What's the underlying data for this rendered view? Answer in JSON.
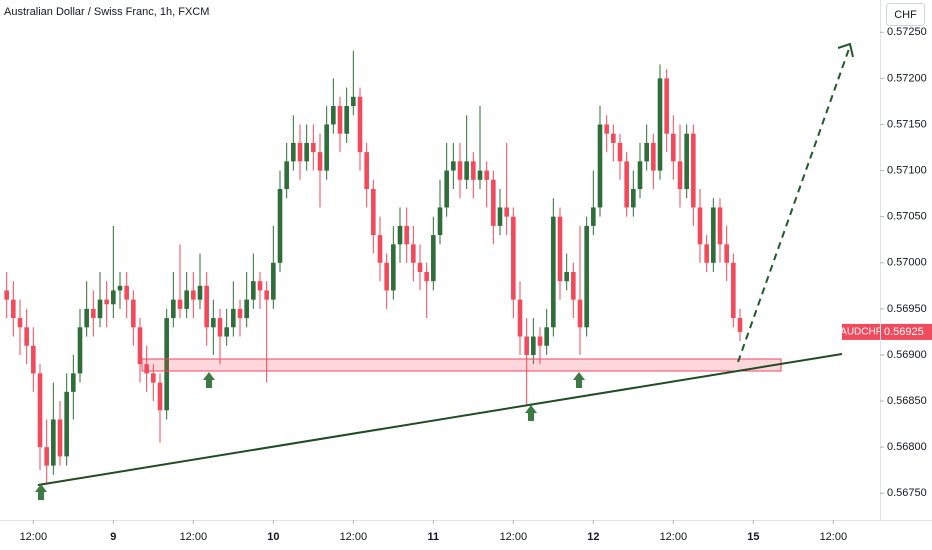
{
  "chart_data": {
    "type": "candlestick",
    "title": "Australian Dollar / Swiss Franc, 1h, FXCM",
    "currency": "CHF",
    "symbol": "AUDCHF",
    "last_price": 0.56925,
    "up_color": "#2f6d3a",
    "down_color": "#f04a5c",
    "x": [
      -4,
      -3,
      -2,
      -1,
      0,
      1,
      2,
      3,
      4,
      5,
      6,
      7,
      8,
      9,
      10,
      11,
      12,
      13,
      14,
      15,
      16,
      17,
      18,
      19,
      20,
      21,
      22,
      23,
      24,
      25,
      26,
      27,
      28,
      29,
      30,
      31,
      32,
      33,
      34,
      35,
      36,
      37,
      38,
      39,
      40,
      41,
      42,
      43,
      44,
      45,
      46,
      47,
      48,
      49,
      50,
      51,
      52,
      53,
      54,
      55,
      56,
      57,
      58,
      59,
      60,
      61,
      62,
      63,
      64,
      65,
      66,
      67,
      68,
      69,
      70,
      71,
      72,
      73,
      74,
      75,
      76,
      77,
      78,
      79,
      80,
      81,
      82,
      83,
      84,
      85,
      86,
      87,
      88,
      89,
      90,
      91,
      92,
      93,
      94,
      95,
      96,
      97,
      98,
      99,
      100,
      101,
      102,
      103,
      104,
      105,
      106
    ],
    "open": [
      0.5697,
      0.5696,
      0.5694,
      0.5693,
      0.5691,
      0.5688,
      0.568,
      0.5678,
      0.5683,
      0.5679,
      0.5686,
      0.5688,
      0.5693,
      0.5695,
      0.5694,
      0.5696,
      0.56955,
      0.5697,
      0.56975,
      0.5696,
      0.5693,
      0.5689,
      0.5688,
      0.5687,
      0.5684,
      0.5694,
      0.5696,
      0.5695,
      0.5697,
      0.5696,
      0.56975,
      0.5693,
      0.5694,
      0.5692,
      0.5693,
      0.5695,
      0.5694,
      0.5696,
      0.5698,
      0.5697,
      0.5696,
      0.57,
      0.5708,
      0.5711,
      0.5713,
      0.5711,
      0.5713,
      0.5712,
      0.571,
      0.5715,
      0.5717,
      0.5714,
      0.5717,
      0.5718,
      0.5712,
      0.5708,
      0.5703,
      0.57,
      0.5697,
      0.5702,
      0.5704,
      0.5702,
      0.57,
      0.5699,
      0.5698,
      0.5703,
      0.5706,
      0.571,
      0.5711,
      0.5709,
      0.5711,
      0.5709,
      0.571,
      0.5709,
      0.5704,
      0.5706,
      0.5705,
      0.5696,
      0.5692,
      0.569,
      0.5692,
      0.5691,
      0.5693,
      0.5705,
      0.5698,
      0.5699,
      0.5696,
      0.5693,
      0.5704,
      0.5706,
      0.5715,
      0.5714,
      0.5713,
      0.5711,
      0.5706,
      0.5708,
      0.5711,
      0.5713,
      0.571,
      0.572,
      0.5714,
      0.5711,
      0.5708,
      0.5714,
      0.5706,
      0.5702,
      0.57,
      0.5706,
      0.5702,
      0.57,
      0.5694
    ],
    "high": [
      0.5699,
      0.5698,
      0.5696,
      0.5695,
      0.5693,
      0.5689,
      0.5683,
      0.5687,
      0.5685,
      0.5688,
      0.569,
      0.5695,
      0.5698,
      0.5697,
      0.5699,
      0.5698,
      0.5704,
      0.5699,
      0.5699,
      0.5697,
      0.5694,
      0.5691,
      0.5689,
      0.5688,
      0.5695,
      0.5699,
      0.5702,
      0.5699,
      0.5699,
      0.5701,
      0.5699,
      0.5696,
      0.5695,
      0.5695,
      0.5698,
      0.5696,
      0.5699,
      0.5701,
      0.5699,
      0.5698,
      0.5704,
      0.571,
      0.5713,
      0.5716,
      0.5715,
      0.5715,
      0.5715,
      0.5714,
      0.5717,
      0.572,
      0.5718,
      0.5719,
      0.5723,
      0.5719,
      0.5713,
      0.5709,
      0.5705,
      0.5701,
      0.5704,
      0.5706,
      0.5706,
      0.5704,
      0.5702,
      0.57,
      0.5705,
      0.5709,
      0.5713,
      0.5713,
      0.5713,
      0.5716,
      0.5712,
      0.5717,
      0.5711,
      0.571,
      0.5708,
      0.5713,
      0.5706,
      0.5698,
      0.5694,
      0.5694,
      0.5693,
      0.5695,
      0.5707,
      0.5706,
      0.5701,
      0.57,
      0.5704,
      0.5705,
      0.571,
      0.5717,
      0.5716,
      0.5715,
      0.5714,
      0.5712,
      0.571,
      0.5713,
      0.5715,
      0.5714,
      0.57215,
      0.5721,
      0.5716,
      0.5715,
      0.5715,
      0.5715,
      0.5708,
      0.5703,
      0.5707,
      0.5707,
      0.5704,
      0.5701,
      0.5695
    ],
    "low": [
      0.5694,
      0.5692,
      0.569,
      0.5689,
      0.5686,
      0.56775,
      0.5676,
      0.5677,
      0.5678,
      0.5678,
      0.5683,
      0.5687,
      0.5692,
      0.5692,
      0.5693,
      0.5693,
      0.5694,
      0.5695,
      0.5694,
      0.5691,
      0.5687,
      0.5686,
      0.5685,
      0.56805,
      0.5683,
      0.5693,
      0.5694,
      0.5694,
      0.5694,
      0.5695,
      0.5691,
      0.569,
      0.5689,
      0.5691,
      0.5692,
      0.5692,
      0.5693,
      0.5695,
      0.5695,
      0.5687,
      0.5695,
      0.5699,
      0.5707,
      0.571,
      0.5709,
      0.571,
      0.571,
      0.5706,
      0.5709,
      0.5714,
      0.5712,
      0.5713,
      0.5716,
      0.571,
      0.5706,
      0.5701,
      0.5698,
      0.5695,
      0.5696,
      0.57,
      0.57,
      0.5698,
      0.5697,
      0.5694,
      0.5697,
      0.5702,
      0.5705,
      0.5708,
      0.5707,
      0.5708,
      0.5707,
      0.5708,
      0.5706,
      0.5702,
      0.5703,
      0.5703,
      0.5694,
      0.569,
      0.56845,
      0.5689,
      0.5689,
      0.569,
      0.5692,
      0.5696,
      0.5697,
      0.5694,
      0.569,
      0.5692,
      0.5703,
      0.5705,
      0.5712,
      0.5711,
      0.5709,
      0.5705,
      0.5705,
      0.5707,
      0.571,
      0.5708,
      0.5709,
      0.5712,
      0.5709,
      0.5706,
      0.5707,
      0.5704,
      0.57,
      0.5699,
      0.5699,
      0.57,
      0.5698,
      0.5693,
      0.56915
    ],
    "close": [
      0.5696,
      0.5694,
      0.5693,
      0.5691,
      0.5688,
      0.568,
      0.5678,
      0.5683,
      0.5679,
      0.5686,
      0.5688,
      0.5693,
      0.5695,
      0.5694,
      0.5696,
      0.56955,
      0.5697,
      0.56975,
      0.5696,
      0.5693,
      0.5689,
      0.5688,
      0.5687,
      0.5684,
      0.5694,
      0.5696,
      0.5695,
      0.5697,
      0.5696,
      0.56975,
      0.5693,
      0.5694,
      0.5692,
      0.5693,
      0.5695,
      0.5694,
      0.5696,
      0.5698,
      0.5697,
      0.5696,
      0.57,
      0.5708,
      0.5711,
      0.5713,
      0.5711,
      0.5713,
      0.5712,
      0.571,
      0.5715,
      0.5717,
      0.5714,
      0.5717,
      0.5718,
      0.5712,
      0.5708,
      0.5703,
      0.57,
      0.5697,
      0.5702,
      0.5704,
      0.5702,
      0.57,
      0.5699,
      0.5698,
      0.5703,
      0.5706,
      0.571,
      0.5711,
      0.5709,
      0.5711,
      0.5709,
      0.571,
      0.5709,
      0.5704,
      0.5706,
      0.5705,
      0.5696,
      0.5692,
      0.569,
      0.5692,
      0.5691,
      0.5693,
      0.5705,
      0.5698,
      0.5699,
      0.5696,
      0.5693,
      0.5704,
      0.5706,
      0.5715,
      0.5714,
      0.5713,
      0.5711,
      0.5706,
      0.5708,
      0.5711,
      0.5713,
      0.571,
      0.572,
      0.5714,
      0.5711,
      0.5708,
      0.5714,
      0.5706,
      0.5702,
      0.57,
      0.5706,
      0.5702,
      0.57,
      0.5694,
      0.56925
    ],
    "xlim": [
      -5,
      127
    ],
    "xticks": [
      {
        "value": 0,
        "label": "12:00"
      },
      {
        "value": 12,
        "label": "9"
      },
      {
        "value": 24,
        "label": "12:00"
      },
      {
        "value": 36,
        "label": "10"
      },
      {
        "value": 48,
        "label": "12:00"
      },
      {
        "value": 60,
        "label": "11"
      },
      {
        "value": 72,
        "label": "12:00"
      },
      {
        "value": 84,
        "label": "12"
      },
      {
        "value": 96,
        "label": "12:00"
      },
      {
        "value": 108,
        "label": "15"
      },
      {
        "value": 120,
        "label": "12:00"
      }
    ],
    "ylim": [
      0.56721,
      0.57285
    ],
    "yticks": [
      {
        "value": 0.5675,
        "label": "0.56750"
      },
      {
        "value": 0.568,
        "label": "0.56800"
      },
      {
        "value": 0.5685,
        "label": "0.56850"
      },
      {
        "value": 0.569,
        "label": "0.56900"
      },
      {
        "value": 0.5695,
        "label": "0.56950"
      },
      {
        "value": 0.57,
        "label": "0.57000"
      },
      {
        "value": 0.5705,
        "label": "0.57050"
      },
      {
        "value": 0.571,
        "label": "0.57100"
      },
      {
        "value": 0.5715,
        "label": "0.57150"
      },
      {
        "value": 0.572,
        "label": "0.57200"
      },
      {
        "value": 0.5725,
        "label": "0.57250"
      }
    ],
    "grid": false
  }
}
